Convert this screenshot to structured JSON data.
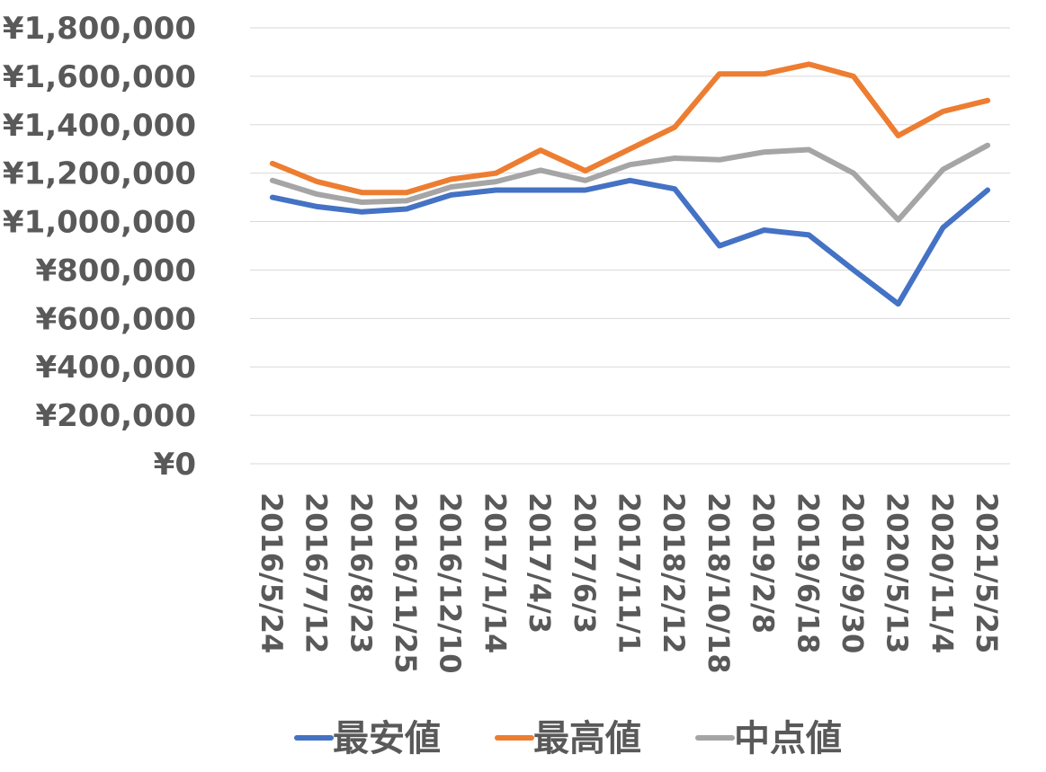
{
  "chart_data": {
    "type": "line",
    "categories": [
      "2016/5/24",
      "2016/7/12",
      "2016/8/23",
      "2016/11/25",
      "2016/12/10",
      "2017/1/14",
      "2017/4/3",
      "2017/6/3",
      "2017/11/1",
      "2018/2/12",
      "2018/10/18",
      "2019/2/8",
      "2019/6/18",
      "2019/9/30",
      "2020/5/13",
      "2020/11/4",
      "2021/5/25"
    ],
    "y_tick_labels": [
      "¥0",
      "¥200,000",
      "¥400,000",
      "¥600,000",
      "¥800,000",
      "¥1,000,000",
      "¥1,200,000",
      "¥1,400,000",
      "¥1,600,000",
      "¥1,800,000"
    ],
    "ylim": [
      0,
      1800000
    ],
    "grid": true,
    "legend_position": "bottom",
    "series": [
      {
        "name": "最安値",
        "color": "#4472C4",
        "values": [
          1100000,
          1062000,
          1040000,
          1052000,
          1110000,
          1130000,
          1130000,
          1130000,
          1170000,
          1135000,
          900000,
          965000,
          945000,
          800000,
          660000,
          975000,
          1130000
        ]
      },
      {
        "name": "最高値",
        "color": "#ED7D31",
        "values": [
          1240000,
          1165000,
          1120000,
          1120000,
          1175000,
          1200000,
          1295000,
          1210000,
          1300000,
          1390000,
          1610000,
          1610000,
          1650000,
          1600000,
          1355000,
          1455000,
          1500000
        ]
      },
      {
        "name": "中点値",
        "color": "#A5A5A5",
        "values": [
          1170000,
          1113000,
          1080000,
          1086000,
          1143000,
          1165000,
          1212000,
          1170000,
          1235000,
          1262000,
          1255000,
          1287000,
          1297000,
          1200000,
          1007000,
          1215000,
          1315000
        ]
      }
    ]
  }
}
